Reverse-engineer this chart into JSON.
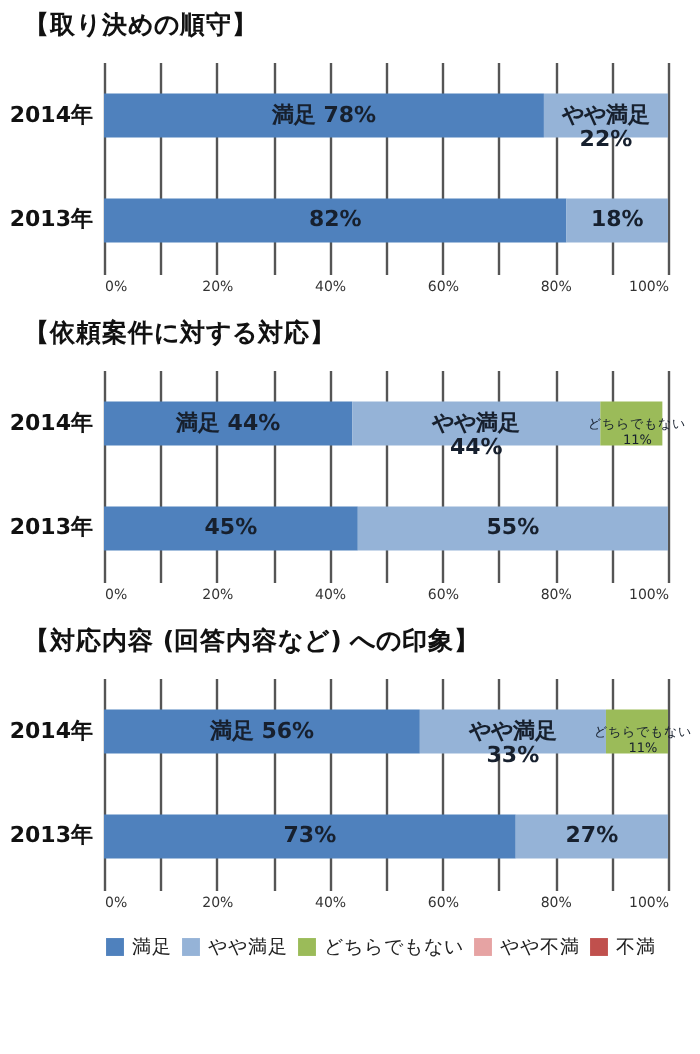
{
  "chart_data": [
    {
      "type": "bar",
      "title": "【取り決めの順守】",
      "orientation": "horizontal",
      "stacked": true,
      "categories": [
        "2014年",
        "2013年"
      ],
      "series": [
        {
          "color": "#4f81bd",
          "values": [
            78,
            82
          ],
          "value_labels": [
            "満足 78%",
            "82%"
          ]
        },
        {
          "color": "#95b3d7",
          "values": [
            22,
            18
          ],
          "value_labels": [
            "やや満足\n22%",
            "18%"
          ]
        }
      ],
      "xlim": [
        0,
        100
      ],
      "xticks": [
        {
          "value": 0,
          "label": "0%"
        },
        {
          "value": 10,
          "label": null
        },
        {
          "value": 20,
          "label": "20%"
        },
        {
          "value": 30,
          "label": null
        },
        {
          "value": 40,
          "label": "40%"
        },
        {
          "value": 50,
          "label": null
        },
        {
          "value": 60,
          "label": "60%"
        },
        {
          "value": 70,
          "label": null
        },
        {
          "value": 80,
          "label": "80%"
        },
        {
          "value": 90,
          "label": null
        },
        {
          "value": 100,
          "label": "100%"
        }
      ],
      "grid": "x"
    },
    {
      "type": "bar",
      "title": "【依頼案件に対する対応】",
      "orientation": "horizontal",
      "stacked": true,
      "categories": [
        "2014年",
        "2013年"
      ],
      "series": [
        {
          "color": "#4f81bd",
          "values": [
            44,
            45
          ],
          "value_labels": [
            "満足 44%",
            "45%"
          ]
        },
        {
          "color": "#95b3d7",
          "values": [
            44,
            55
          ],
          "value_labels": [
            "やや満足\n44%",
            "55%"
          ]
        },
        {
          "color": "#9bbb59",
          "values": [
            11,
            null
          ],
          "value_labels": [
            "どちらでもない\n11%",
            null
          ]
        }
      ],
      "xlim": [
        0,
        100
      ],
      "xticks": [
        {
          "value": 0,
          "label": "0%"
        },
        {
          "value": 10,
          "label": null
        },
        {
          "value": 20,
          "label": "20%"
        },
        {
          "value": 30,
          "label": null
        },
        {
          "value": 40,
          "label": "40%"
        },
        {
          "value": 50,
          "label": null
        },
        {
          "value": 60,
          "label": "60%"
        },
        {
          "value": 70,
          "label": null
        },
        {
          "value": 80,
          "label": "80%"
        },
        {
          "value": 90,
          "label": null
        },
        {
          "value": 100,
          "label": "100%"
        }
      ],
      "grid": "x"
    },
    {
      "type": "bar",
      "title": "【対応内容 (回答内容など) への印象】",
      "orientation": "horizontal",
      "stacked": true,
      "categories": [
        "2014年",
        "2013年"
      ],
      "series": [
        {
          "name": "満足",
          "color": "#4f81bd",
          "values": [
            56,
            73
          ],
          "value_labels": [
            "満足 56%",
            "73%"
          ]
        },
        {
          "name": "やや満足",
          "color": "#95b3d7",
          "values": [
            33,
            27
          ],
          "value_labels": [
            "やや満足\n33%",
            "27%"
          ]
        },
        {
          "name": "どちらでもない",
          "color": "#9bbb59",
          "values": [
            11,
            null
          ],
          "value_labels": [
            "どちらでもない\n11%",
            null
          ]
        },
        {
          "name": "やや不満",
          "color": "#e6a3a3",
          "values": [
            null,
            null
          ]
        },
        {
          "name": "不満",
          "color": "#c0504d",
          "values": [
            null,
            null
          ]
        }
      ],
      "xlim": [
        0,
        100
      ],
      "xticks": [
        {
          "value": 0,
          "label": "0%"
        },
        {
          "value": 10,
          "label": null
        },
        {
          "value": 20,
          "label": "20%"
        },
        {
          "value": 30,
          "label": null
        },
        {
          "value": 40,
          "label": "40%"
        },
        {
          "value": 50,
          "label": null
        },
        {
          "value": 60,
          "label": "60%"
        },
        {
          "value": 70,
          "label": null
        },
        {
          "value": 80,
          "label": "80%"
        },
        {
          "value": 90,
          "label": null
        },
        {
          "value": 100,
          "label": "100%"
        }
      ],
      "grid": "x",
      "legend": "bottom"
    }
  ]
}
